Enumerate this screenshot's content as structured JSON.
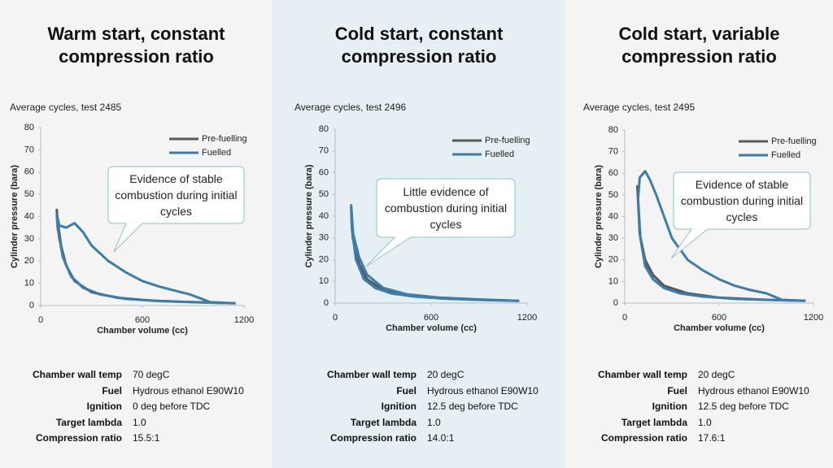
{
  "chart_data": [
    {
      "type": "line",
      "title": "Warm start, constant compression ratio",
      "subtitle": "Average cycles, test 2485",
      "xlabel": "Chamber volume (cc)",
      "ylabel": "Cylinder pressure (bara)",
      "xlim": [
        0,
        1200
      ],
      "xticks": [
        0,
        600,
        1200
      ],
      "ylim": [
        0,
        80
      ],
      "yticks": [
        0,
        10,
        20,
        30,
        40,
        50,
        60,
        70,
        80
      ],
      "annotation": "Evidence of stable combustion during initial cycles",
      "legend": "upper right",
      "series": [
        {
          "name": "Pre-fuelling",
          "color": "#595959",
          "x": [
            1150,
            900,
            700,
            500,
            350,
            250,
            180,
            130,
            100,
            95,
            110,
            150,
            200,
            300,
            450,
            650,
            900,
            1150
          ],
          "values": [
            1,
            1.5,
            2,
            3,
            5,
            8,
            13,
            22,
            38,
            43,
            30,
            18,
            11,
            6,
            3.5,
            2.2,
            1.5,
            1
          ]
        },
        {
          "name": "Fuelled",
          "color": "#3b7dab",
          "x": [
            1150,
            900,
            700,
            500,
            350,
            250,
            180,
            130,
            100,
            95,
            110,
            150,
            200,
            250,
            300,
            400,
            500,
            600,
            700,
            800,
            880,
            950,
            1000,
            1150
          ],
          "values": [
            1,
            1.5,
            2,
            3,
            5,
            8,
            13,
            22,
            35,
            41,
            36,
            35,
            37,
            33,
            27,
            20,
            15,
            11,
            8.5,
            6.5,
            5,
            3,
            1.5,
            1
          ]
        }
      ]
    },
    {
      "type": "line",
      "title": "Cold start, constant compression ratio",
      "subtitle": "Average cycles, test 2496",
      "xlabel": "Chamber volume (cc)",
      "ylabel": "Cylinder pressure (bara)",
      "xlim": [
        0,
        1200
      ],
      "xticks": [
        0,
        600,
        1200
      ],
      "ylim": [
        0,
        80
      ],
      "yticks": [
        0,
        10,
        20,
        30,
        40,
        50,
        60,
        70,
        80
      ],
      "annotation": "Little evidence of combustion during initial cycles",
      "legend": "upper right",
      "series": [
        {
          "name": "Pre-fuelling",
          "color": "#595959",
          "x": [
            1150,
            900,
            700,
            500,
            350,
            250,
            180,
            130,
            105,
            100,
            110,
            150,
            200,
            300,
            450,
            650,
            900,
            1150
          ],
          "values": [
            1,
            1.5,
            2,
            3,
            4.5,
            7,
            12,
            22,
            36,
            44,
            30,
            18,
            11,
            6,
            3.5,
            2.2,
            1.5,
            1
          ]
        },
        {
          "name": "Fuelled",
          "color": "#3b7dab",
          "x": [
            1150,
            900,
            700,
            500,
            350,
            250,
            180,
            130,
            105,
            100,
            112,
            150,
            200,
            300,
            450,
            650,
            900,
            1150
          ],
          "values": [
            1,
            1.5,
            2,
            3,
            4.5,
            7,
            11,
            20,
            34,
            45,
            32,
            21,
            13,
            7,
            4,
            2.5,
            1.7,
            1
          ]
        }
      ]
    },
    {
      "type": "line",
      "title": "Cold start, variable compression ratio",
      "subtitle": "Average cycles, test 2495",
      "xlabel": "Chamber volume (cc)",
      "ylabel": "Cylinder pressure (bara)",
      "xlim": [
        0,
        1200
      ],
      "xticks": [
        0,
        600,
        1200
      ],
      "ylim": [
        0,
        80
      ],
      "yticks": [
        0,
        10,
        20,
        30,
        40,
        50,
        60,
        70,
        80
      ],
      "annotation": "Evidence of stable combustion during initial cycles",
      "legend": "upper right",
      "series": [
        {
          "name": "Pre-fuelling",
          "color": "#595959",
          "x": [
            1150,
            900,
            700,
            500,
            350,
            250,
            180,
            130,
            95,
            80,
            95,
            130,
            180,
            250,
            400,
            600,
            900,
            1150
          ],
          "values": [
            1,
            1.5,
            2,
            3,
            4.5,
            7,
            11,
            18,
            32,
            54,
            32,
            20,
            13,
            8,
            4.5,
            2.5,
            1.5,
            1
          ]
        },
        {
          "name": "Fuelled",
          "color": "#3b7dab",
          "x": [
            1150,
            900,
            700,
            500,
            350,
            250,
            180,
            130,
            100,
            85,
            95,
            130,
            160,
            200,
            300,
            400,
            500,
            600,
            700,
            800,
            900,
            950,
            1000,
            1150
          ],
          "values": [
            1,
            1.5,
            2,
            3,
            4.5,
            7,
            11,
            17,
            30,
            48,
            58,
            61,
            57,
            50,
            30,
            20,
            15,
            11,
            8,
            6,
            4.5,
            3,
            1.5,
            1
          ]
        }
      ]
    }
  ],
  "specs": [
    [
      [
        "Chamber wall temp",
        "70 degC"
      ],
      [
        "Fuel",
        "Hydrous ethanol E90W10"
      ],
      [
        "Ignition",
        "0 deg before TDC"
      ],
      [
        "Target lambda",
        "1.0"
      ],
      [
        "Compression ratio",
        "15.5:1"
      ]
    ],
    [
      [
        "Chamber wall temp",
        "20 degC"
      ],
      [
        "Fuel",
        "Hydrous ethanol E90W10"
      ],
      [
        "Ignition",
        "12.5 deg before TDC"
      ],
      [
        "Target lambda",
        "1.0"
      ],
      [
        "Compression ratio",
        "14.0:1"
      ]
    ],
    [
      [
        "Chamber wall temp",
        "20 degC"
      ],
      [
        "Fuel",
        "Hydrous ethanol E90W10"
      ],
      [
        "Ignition",
        "12.5 deg before TDC"
      ],
      [
        "Target lambda",
        "1.0"
      ],
      [
        "Compression ratio",
        "17.6:1"
      ]
    ]
  ]
}
